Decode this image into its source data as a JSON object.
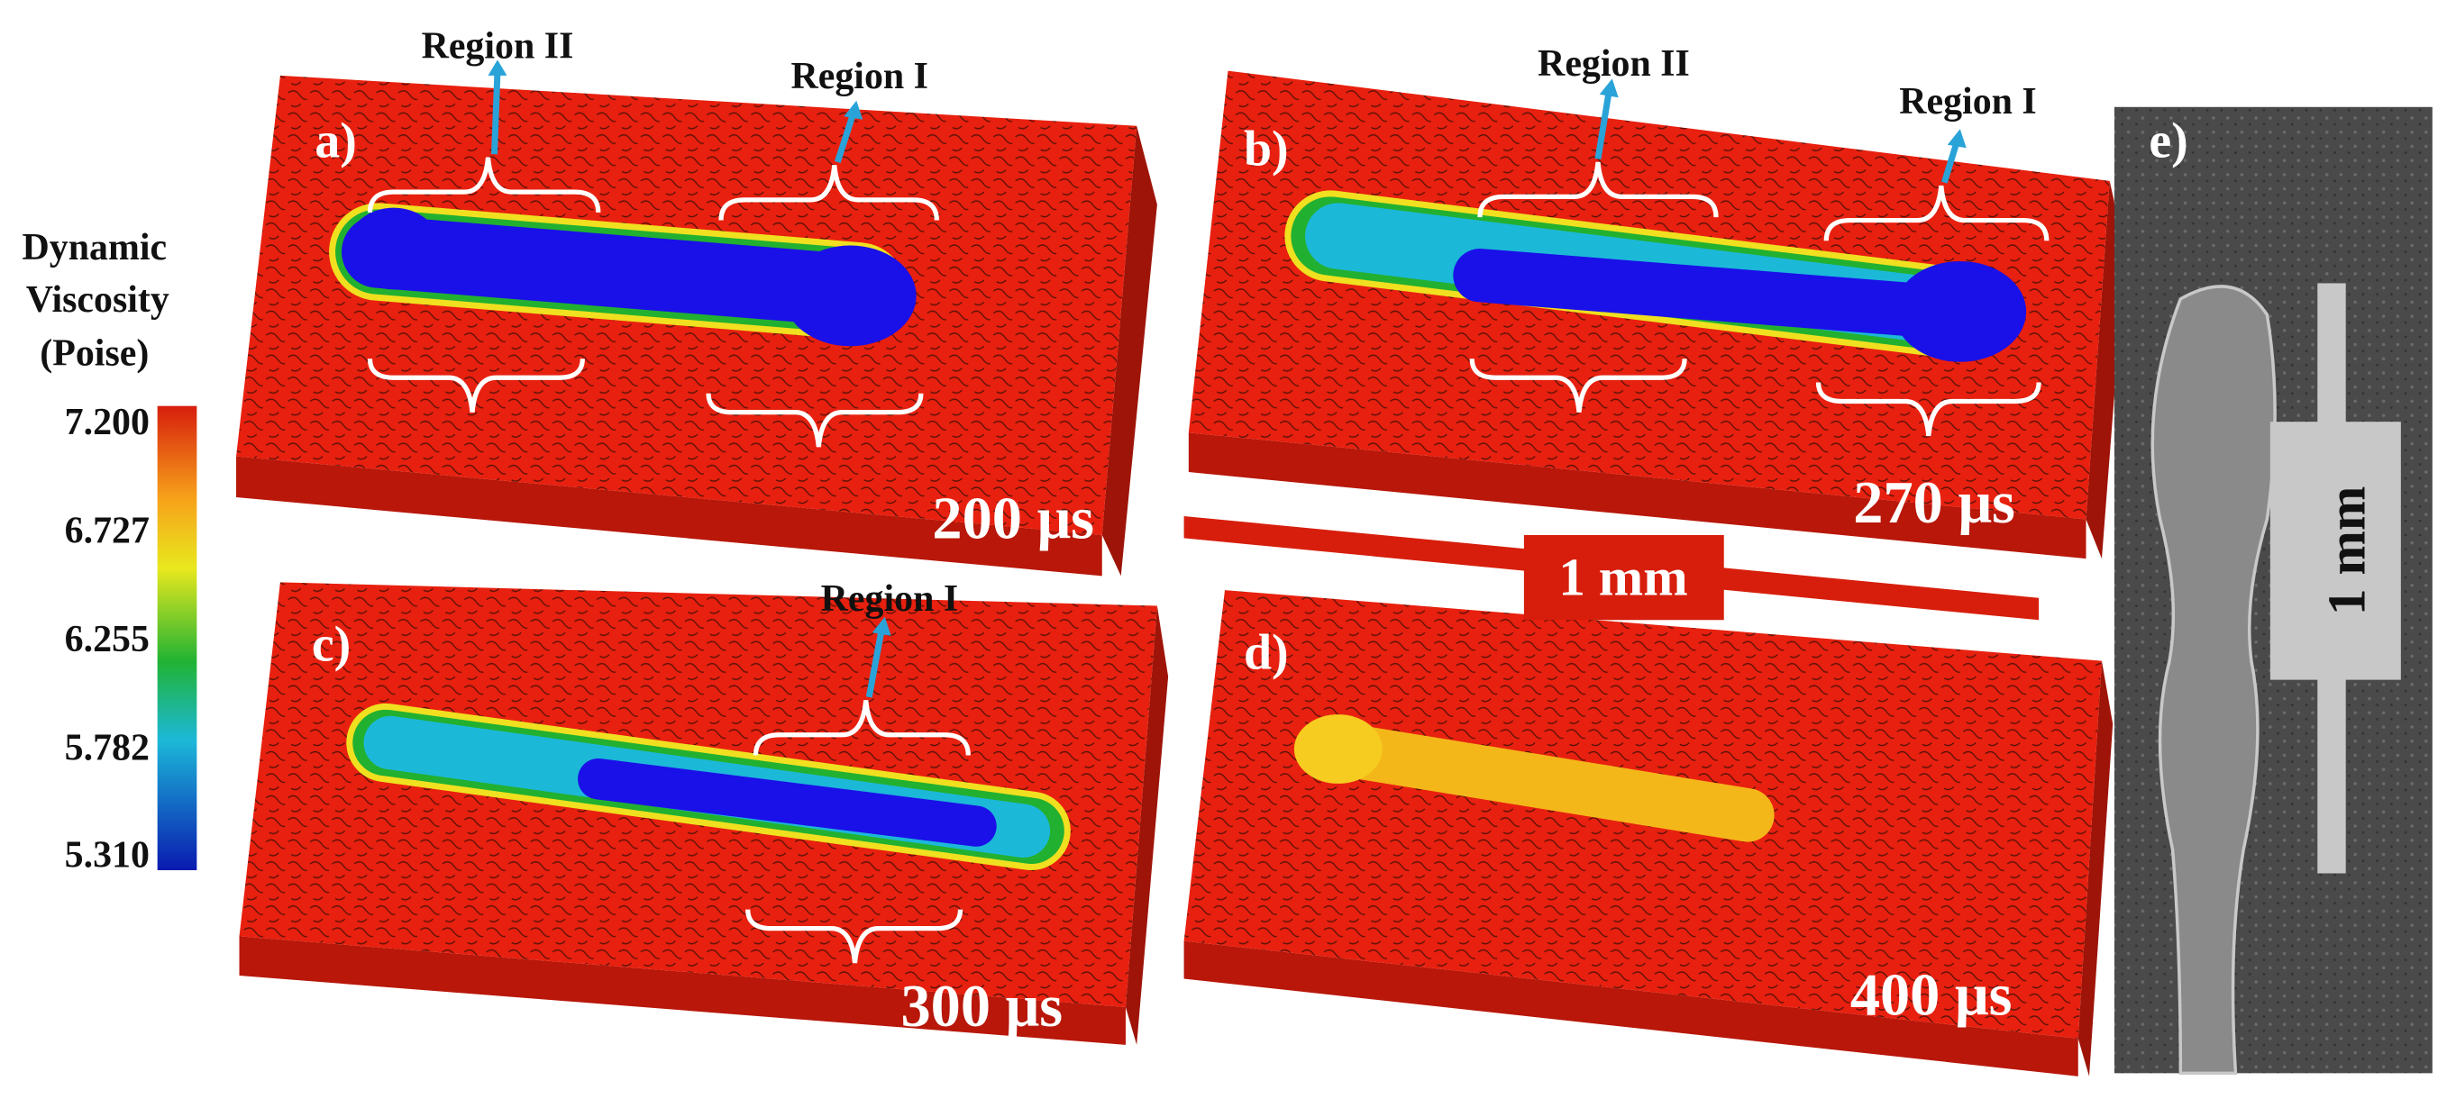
{
  "colorbar": {
    "title": [
      "Dynamic",
      "Viscosity",
      "(Poise)"
    ],
    "ticks": [
      "7.200",
      "6.727",
      "6.255",
      "5.782",
      "5.310"
    ]
  },
  "panels": [
    {
      "label": "a)",
      "time": "200 μs",
      "regions": [
        "Region II",
        "Region I"
      ]
    },
    {
      "label": "b)",
      "time": "270 μs",
      "regions": [
        "Region II",
        "Region I"
      ]
    },
    {
      "label": "c)",
      "time": "300 μs",
      "regions": [
        "Region I"
      ]
    },
    {
      "label": "d)",
      "time": "400 μs"
    },
    {
      "label": "e)",
      "scale_bar": "1 mm"
    }
  ],
  "scale_bar": "1 mm"
}
